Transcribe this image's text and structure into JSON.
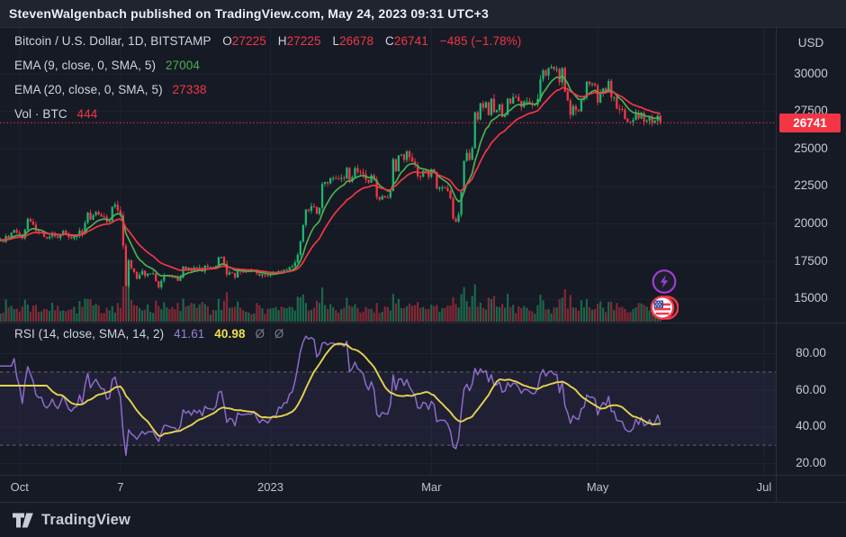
{
  "attribution": "StevenWalgenbach published on TradingView.com, May 24, 2023 09:31 UTC+3",
  "footer": {
    "brand": "TradingView"
  },
  "symbol_legend": {
    "title": "Bitcoin / U.S. Dollar, 1D, BITSTAMP",
    "o_label": "O",
    "o_value": "27225",
    "h_label": "H",
    "h_value": "27225",
    "l_label": "L",
    "l_value": "26678",
    "c_label": "C",
    "c_value": "26741",
    "change": "−485 (−1.78%)"
  },
  "indicator_legends": [
    {
      "label": "EMA (9, close, 0, SMA, 5)",
      "value": "27004"
    },
    {
      "label": "EMA (20, close, 0, SMA, 5)",
      "value": "27338"
    },
    {
      "label": "Vol · BTC",
      "value": "444"
    }
  ],
  "rsi_legend": {
    "label": "RSI (14, close, SMA, 14, 2)",
    "value_rsi": "41.61",
    "value_ma": "40.98",
    "empty1": "Ø",
    "empty2": "Ø"
  },
  "price_axis": {
    "unit": "USD",
    "ticks": [
      30000,
      27500,
      25000,
      22500,
      20000,
      17500,
      15000
    ],
    "last_price": "26741"
  },
  "rsi_axis": {
    "ticks": [
      "80.00",
      "60.00",
      "40.00",
      "20.00"
    ]
  },
  "time_axis": {
    "labels": [
      {
        "text": "Oct",
        "d": -92
      },
      {
        "text": "7",
        "d": -55
      },
      {
        "text": "2023",
        "d": 0
      },
      {
        "text": "Mar",
        "d": 59
      },
      {
        "text": "May",
        "d": 120
      },
      {
        "text": "Jul",
        "d": 181
      }
    ]
  },
  "markers": [
    {
      "name": "lightning",
      "color": "#a13bd6"
    },
    {
      "name": "us-flag-events",
      "color": "#f23645"
    }
  ],
  "colors": {
    "bg": "#161a25",
    "topbar": "#20242f",
    "separator": "#2a2e39",
    "grid": "#1e2330",
    "up": "#1db470",
    "down": "#f23645",
    "ema9": "#4caf50",
    "ema20": "#f23645",
    "rsi_line": "#8b6cc9",
    "rsi_ma": "#e5d44e",
    "rsi_dash": "#7d818c",
    "rsi_band": "rgba(135,100,210,0.09)",
    "axis_text": "#c6cad3"
  },
  "chart_data": {
    "type": "candlestick",
    "title": "Bitcoin / U.S. Dollar",
    "exchange": "BITSTAMP",
    "interval": "1D",
    "unit": "USD",
    "start_date": "2022-09-24",
    "frequency": "daily",
    "visible_price_range": [
      14500,
      31500
    ],
    "visible_time_range": [
      "2022-09-24",
      "2023-07-01"
    ],
    "legend_grid": "on",
    "current": {
      "open": 27225,
      "high": 27225,
      "low": 26678,
      "close": 26741,
      "change": -485,
      "change_pct": -1.78,
      "ema9": 27004,
      "ema20": 27338,
      "volume_btc": 444,
      "rsi": 41.61,
      "rsi_ma": 40.98
    },
    "indicators": [
      {
        "name": "EMA",
        "period": 9,
        "source": "close"
      },
      {
        "name": "EMA",
        "period": 20,
        "source": "close"
      },
      {
        "name": "Volume",
        "symbol": "BTC"
      },
      {
        "name": "RSI",
        "period": 14,
        "source": "close",
        "smoothing": "SMA 14",
        "overbought": 70,
        "oversold": 30
      }
    ],
    "closes": [
      18950,
      18800,
      19200,
      19080,
      19420,
      19600,
      19420,
      19310,
      19050,
      19630,
      20340,
      20160,
      19960,
      19530,
      19420,
      19440,
      19140,
      19050,
      19160,
      19390,
      19180,
      19070,
      19260,
      19550,
      19330,
      19120,
      19040,
      19160,
      19200,
      19570,
      19330,
      20080,
      20770,
      20290,
      20590,
      20810,
      20630,
      20500,
      20490,
      20150,
      20210,
      21150,
      21300,
      20920,
      20600,
      18550,
      15880,
      17580,
      17040,
      16800,
      16350,
      16620,
      16880,
      16550,
      16700,
      16700,
      16710,
      16190,
      15780,
      16220,
      16600,
      16600,
      16520,
      16460,
      16440,
      16220,
      16440,
      17160,
      16980,
      17090,
      16880,
      17110,
      16970,
      17090,
      16840,
      17230,
      17130,
      17130,
      17090,
      17210,
      17780,
      17810,
      17360,
      16630,
      16780,
      16740,
      16440,
      16900,
      16830,
      16820,
      16840,
      16850,
      16840,
      16920,
      16710,
      16560,
      16640,
      16600,
      16540,
      16620,
      16680,
      16680,
      16860,
      16840,
      16950,
      16950,
      17130,
      17180,
      17440,
      17940,
      18850,
      19930,
      20960,
      20880,
      21190,
      21140,
      20680,
      21080,
      22670,
      22790,
      22710,
      23060,
      23060,
      23020,
      23010,
      23080,
      23030,
      23740,
      22840,
      23130,
      23720,
      23490,
      23430,
      23330,
      22940,
      22760,
      23250,
      22960,
      21790,
      21630,
      21860,
      21780,
      21770,
      22200,
      24320,
      23520,
      24570,
      24630,
      24270,
      24840,
      24450,
      24180,
      23940,
      23190,
      23160,
      23560,
      23490,
      23140,
      23640,
      23460,
      22350,
      22430,
      22430,
      22410,
      22200,
      21710,
      20360,
      20150,
      20620,
      22160,
      24200,
      24740,
      24280,
      25060,
      27440,
      26960,
      28040,
      27750,
      28100,
      27260,
      28350,
      27450,
      27590,
      27960,
      27140,
      27270,
      28350,
      28030,
      28470,
      28460,
      28190,
      27790,
      28160,
      28170,
      28040,
      27920,
      27940,
      28330,
      29640,
      30230,
      29890,
      30380,
      30470,
      30310,
      30320,
      29440,
      30390,
      28820,
      28240,
      27270,
      27860,
      27590,
      27510,
      28300,
      28430,
      29480,
      29320,
      29340,
      29230,
      28090,
      28680,
      29030,
      28840,
      29530,
      28440,
      28450,
      27690,
      27660,
      27620,
      27000,
      26800,
      26780,
      26930,
      27400,
      27030,
      27400,
      26820,
      26890,
      27120,
      26750,
      26880,
      27225,
      26741
    ]
  }
}
